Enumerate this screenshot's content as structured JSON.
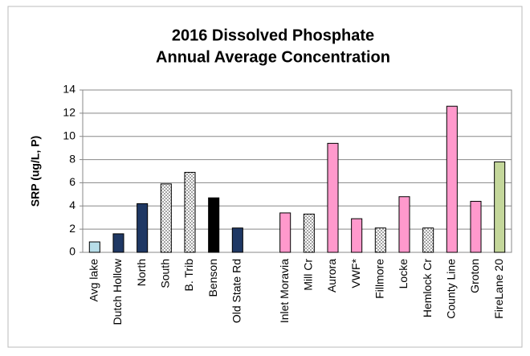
{
  "chart_data": {
    "type": "bar",
    "title": "2016 Dissolved Phosphate",
    "subtitle": "Annual Average Concentration",
    "y_label": "SRP (ug/L, P)",
    "categories": [
      "Avg lake",
      "Dutch Hollow",
      "North",
      "South",
      "B. Trib",
      "Benson",
      "Old State Rd",
      null,
      "Inlet Moravia",
      "Mill Cr",
      "Aurora",
      "VWF*",
      "Fillmore",
      "Locke",
      "Hemlock Cr",
      "County Line",
      "Groton",
      "FireLane 20"
    ],
    "values": [
      0.9,
      1.6,
      4.2,
      5.9,
      6.9,
      4.7,
      2.1,
      null,
      3.4,
      3.3,
      9.4,
      2.9,
      2.1,
      4.8,
      2.1,
      12.6,
      4.4,
      7.8
    ],
    "colors": [
      "#b7dde8",
      "#1f3864",
      "#1f3864",
      "dotted",
      "dotted",
      "#000000",
      "#1f3864",
      null,
      "#ff99cc",
      "dotted",
      "#ff99cc",
      "#ff99cc",
      "dotted",
      "#ff99cc",
      "dotted",
      "#ff99cc",
      "#ff99cc",
      "#c4d79b"
    ],
    "ylim": [
      0,
      14
    ],
    "yticks": [
      0,
      2,
      4,
      6,
      8,
      10,
      12,
      14
    ],
    "grid": true
  }
}
